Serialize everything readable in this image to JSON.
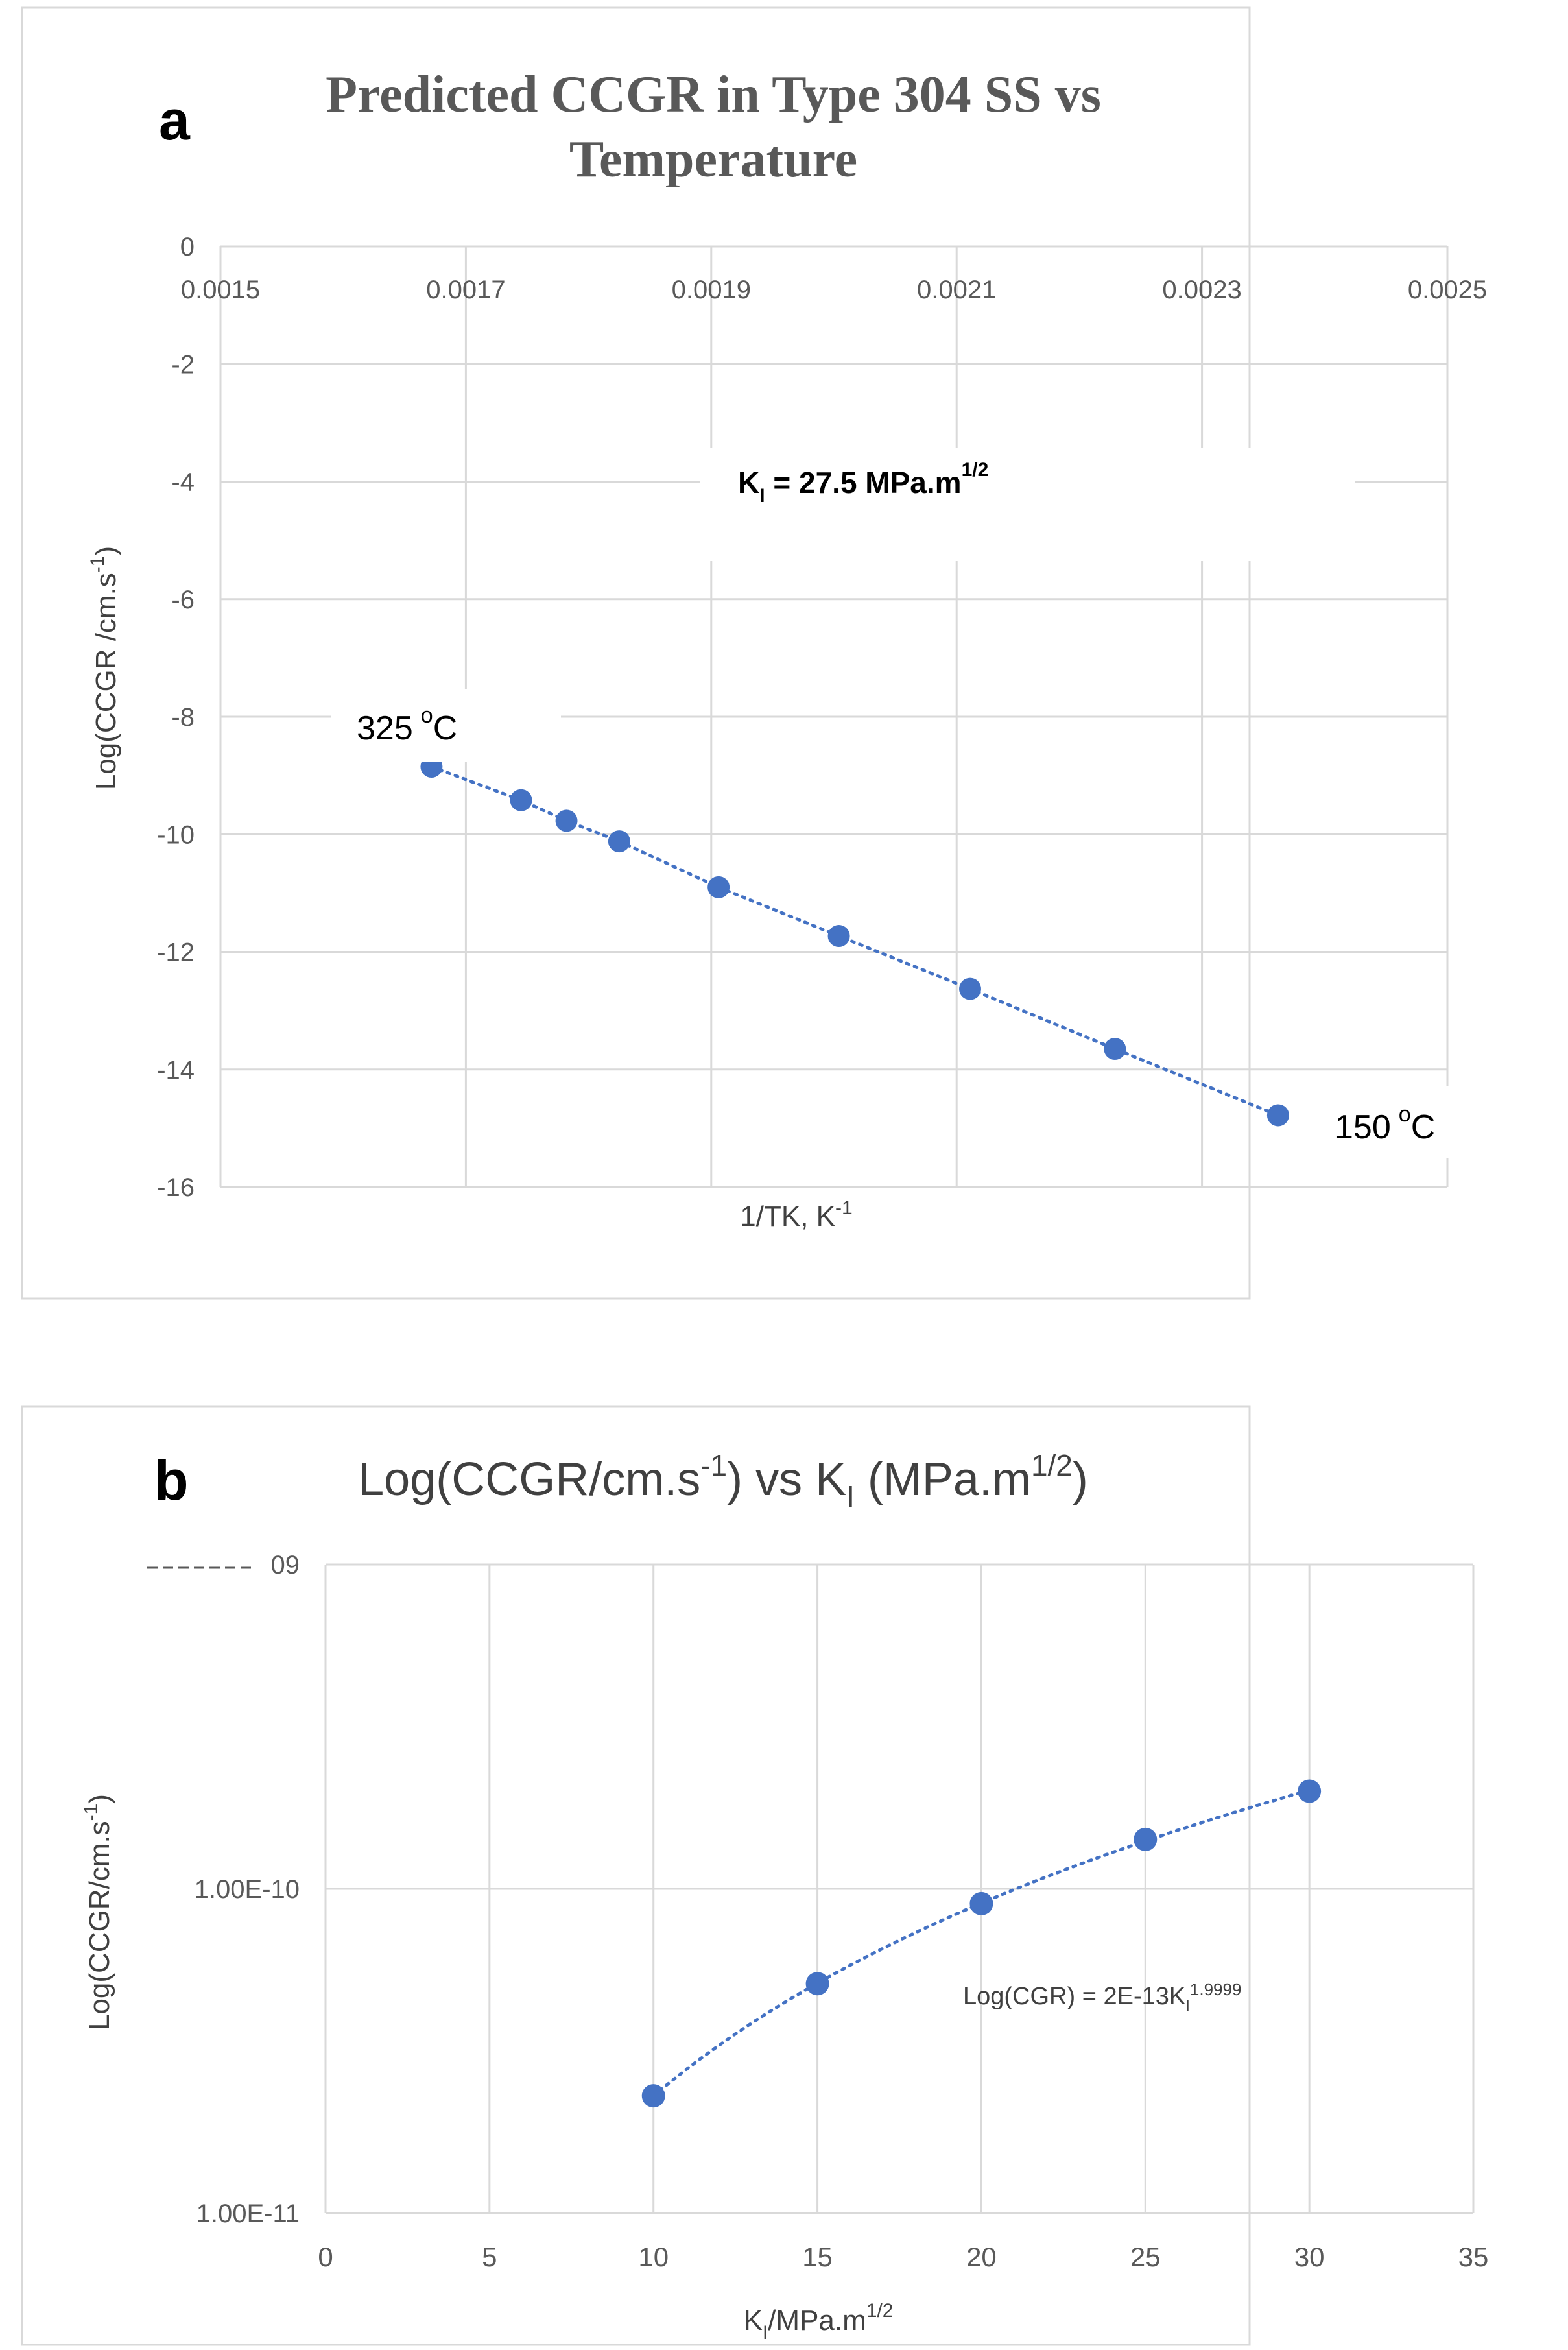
{
  "chart_data": [
    {
      "type": "scatter",
      "panel_label": "a",
      "title_line1": "Predicted CCGR in Type 304 SS vs",
      "title_line2": "Temperature",
      "xlabel": "1/TK, K",
      "xlabel_sup": "-1",
      "ylabel": "Log(CCGR /cm.s",
      "ylabel_sup": "-1",
      "ylabel_end": ")",
      "xlim": [
        0.0015,
        0.0025
      ],
      "ylim": [
        -16,
        0
      ],
      "x_ticks": [
        "0.0015",
        "0.0017",
        "0.0019",
        "0.0021",
        "0.0023",
        "0.0025"
      ],
      "x_tick_values": [
        0.0015,
        0.0017,
        0.0019,
        0.0021,
        0.0023,
        0.0025
      ],
      "y_ticks": [
        "0",
        "-2",
        "-4",
        "-6",
        "-8",
        "-10",
        "-12",
        "-14",
        "-16"
      ],
      "y_tick_values": [
        0,
        -2,
        -4,
        -6,
        -8,
        -10,
        -12,
        -14,
        -16
      ],
      "grid": true,
      "series": [
        {
          "name": "CCGR",
          "color": "#4472c4",
          "trendline": "linear dotted",
          "x": [
            0.001672,
            0.001745,
            0.001782,
            0.001825,
            0.001906,
            0.002004,
            0.002111,
            0.002229,
            0.002362
          ],
          "y": [
            -8.85,
            -9.42,
            -9.77,
            -10.12,
            -10.9,
            -11.73,
            -12.63,
            -13.65,
            -14.78
          ]
        }
      ],
      "annotations": {
        "ki_prefix": "K",
        "ki_sub": "I",
        "ki_value": " = 27.5 MPa.m",
        "ki_sup": "1/2",
        "high_temp": "325",
        "high_temp_unit": "C",
        "low_temp": "150",
        "low_temp_unit": "C",
        "degree": "o"
      }
    },
    {
      "type": "scatter",
      "panel_label": "b",
      "title_a": "Log(CCGR/cm.s",
      "title_sup1": "-1",
      "title_b": ") vs K",
      "title_sub": "I",
      "title_c": " (MPa.m",
      "title_sup2": "1/2",
      "title_d": ")",
      "xlabel": "K",
      "xlabel_sub": "I",
      "xlabel_b": "/MPa.m",
      "xlabel_sup": "1/2",
      "ylabel": "Log(CCGR/cm.s",
      "ylabel_sup": "-1",
      "ylabel_end": ")",
      "y_scale": "log",
      "xlim": [
        0,
        35
      ],
      "ylim": [
        1e-11,
        1e-09
      ],
      "x_ticks": [
        "0",
        "5",
        "10",
        "15",
        "20",
        "25",
        "30",
        "35"
      ],
      "x_tick_values": [
        0,
        5,
        10,
        15,
        20,
        25,
        30,
        35
      ],
      "y_ticks": [
        "1.00E-11",
        "1.00E-10"
      ],
      "y_tick_values": [
        1e-11,
        1e-10
      ],
      "y_top_partial_label": "09",
      "grid": true,
      "series": [
        {
          "name": "CCGR",
          "color": "#4472c4",
          "trendline": "power dotted",
          "x": [
            10,
            15,
            20,
            25,
            30
          ],
          "y": [
            2.3e-11,
            5.1e-11,
            9e-11,
            1.42e-10,
            2e-10
          ]
        }
      ],
      "equation_a": "Log(CGR) = 2E-13K",
      "equation_sub": "I",
      "equation_sup": "1.9999"
    }
  ]
}
